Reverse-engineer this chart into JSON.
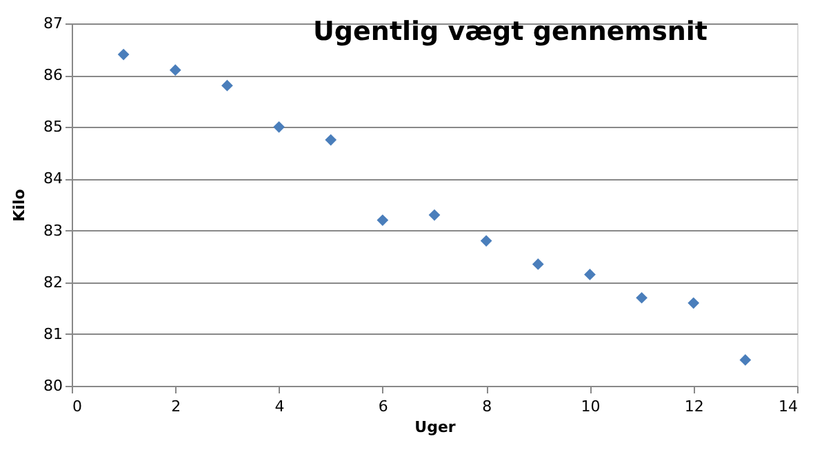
{
  "chart_data": {
    "type": "scatter",
    "title": "Ugentlig vægt gennemsnit",
    "xlabel": "Uger",
    "ylabel": "Kilo",
    "x": [
      1,
      2,
      3,
      4,
      5,
      6,
      7,
      8,
      9,
      10,
      11,
      12,
      13
    ],
    "series": [
      {
        "color": "#4a7ebb",
        "values": [
          86.4,
          86.1,
          85.8,
          85.0,
          84.75,
          83.2,
          83.3,
          82.8,
          82.35,
          82.15,
          81.7,
          81.6,
          80.5
        ]
      }
    ],
    "xlim": [
      0,
      14
    ],
    "xticks": [
      0,
      2,
      4,
      6,
      8,
      10,
      12,
      14
    ],
    "ylim": [
      80,
      87
    ],
    "yticks": [
      80,
      81,
      82,
      83,
      84,
      85,
      86,
      87
    ],
    "grid": "y",
    "marker": "diamond"
  }
}
